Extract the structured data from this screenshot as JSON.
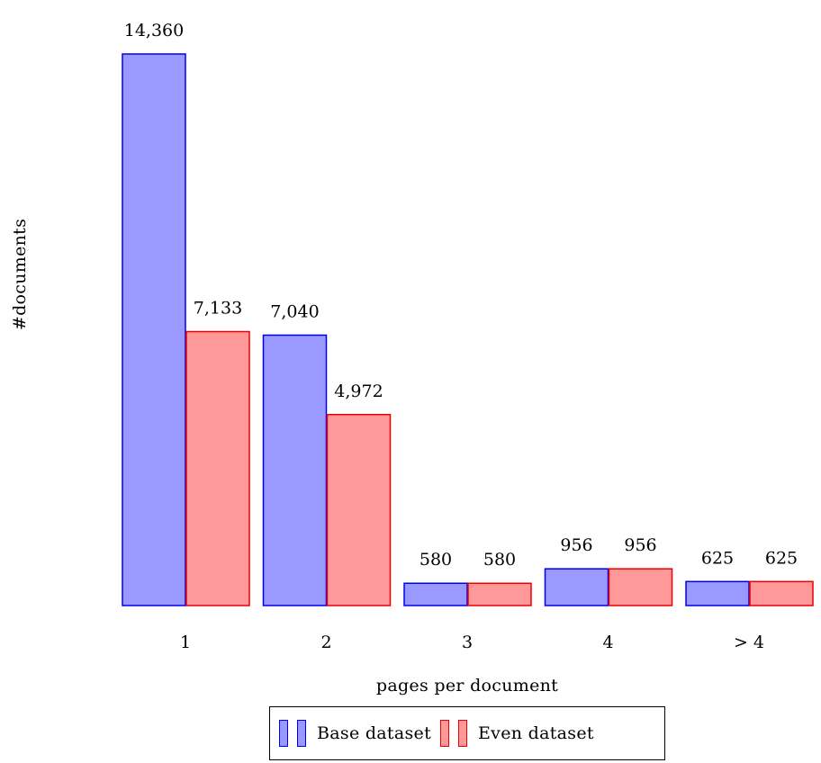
{
  "chart_data": {
    "type": "bar",
    "categories": [
      "1",
      "2",
      "3",
      "4",
      "> 4"
    ],
    "series": [
      {
        "name": "Base dataset",
        "values": [
          14360,
          7040,
          580,
          956,
          625
        ],
        "value_labels": [
          "14,360",
          "7,040",
          "580",
          "956",
          "625"
        ],
        "fill": "#9999ff",
        "stroke": "#0000ee"
      },
      {
        "name": "Even dataset",
        "values": [
          7133,
          4972,
          580,
          956,
          625
        ],
        "value_labels": [
          "7,133",
          "4,972",
          "580",
          "956",
          "625"
        ],
        "fill": "#ff9999",
        "stroke": "#ee0000"
      }
    ],
    "xlabel": "pages per document",
    "ylabel": "#documents",
    "ylim": [
      0,
      14360
    ],
    "grid": false,
    "legend": "bottom-center"
  }
}
